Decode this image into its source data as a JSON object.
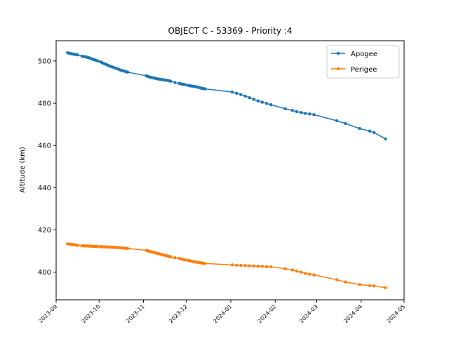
{
  "chart_data": {
    "type": "line",
    "title": "OBJECT C - 53369 - Priority :4",
    "xlabel": "",
    "ylabel": "Altitude (km)",
    "xlim": [
      "2023-09-01",
      "2024-05-01"
    ],
    "ylim": [
      386.9,
      509.6
    ],
    "xticks": [
      "2023-09",
      "2023-10",
      "2023-11",
      "2023-12",
      "2024-01",
      "2024-02",
      "2024-03",
      "2024-04",
      "2024-05"
    ],
    "yticks": [
      400,
      420,
      440,
      460,
      480,
      500
    ],
    "grid": false,
    "legend_position": "top-right",
    "series": [
      {
        "name": "Apogee",
        "color": "#1f77b4",
        "marker": "circle",
        "points": [
          [
            "2023-09-09",
            503.9
          ],
          [
            "2023-09-10",
            503.7
          ],
          [
            "2023-09-11",
            503.5
          ],
          [
            "2023-09-12",
            503.4
          ],
          [
            "2023-09-13",
            503.3
          ],
          [
            "2023-09-14",
            503.1
          ],
          [
            "2023-09-15",
            503.0
          ],
          [
            "2023-09-16",
            502.9
          ],
          [
            "2023-09-19",
            502.3
          ],
          [
            "2023-09-20",
            502.1
          ],
          [
            "2023-09-21",
            502.0
          ],
          [
            "2023-09-22",
            501.9
          ],
          [
            "2023-09-23",
            501.7
          ],
          [
            "2023-09-24",
            501.5
          ],
          [
            "2023-09-25",
            501.2
          ],
          [
            "2023-09-26",
            501.0
          ],
          [
            "2023-09-27",
            500.7
          ],
          [
            "2023-09-28",
            500.5
          ],
          [
            "2023-09-29",
            500.3
          ],
          [
            "2023-09-30",
            500.0
          ],
          [
            "2023-10-02",
            499.6
          ],
          [
            "2023-10-03",
            499.2
          ],
          [
            "2023-10-04",
            498.9
          ],
          [
            "2023-10-05",
            498.6
          ],
          [
            "2023-10-06",
            498.4
          ],
          [
            "2023-10-07",
            498.0
          ],
          [
            "2023-10-08",
            497.7
          ],
          [
            "2023-10-09",
            497.5
          ],
          [
            "2023-10-10",
            497.2
          ],
          [
            "2023-10-11",
            497.0
          ],
          [
            "2023-10-12",
            496.7
          ],
          [
            "2023-10-13",
            496.5
          ],
          [
            "2023-10-14",
            496.3
          ],
          [
            "2023-10-15",
            496.0
          ],
          [
            "2023-10-16",
            495.7
          ],
          [
            "2023-10-17",
            495.5
          ],
          [
            "2023-10-18",
            495.3
          ],
          [
            "2023-10-19",
            495.1
          ],
          [
            "2023-10-20",
            494.9
          ],
          [
            "2023-10-21",
            494.7
          ],
          [
            "2023-11-03",
            493.0
          ],
          [
            "2023-11-04",
            492.7
          ],
          [
            "2023-11-05",
            492.5
          ],
          [
            "2023-11-06",
            492.3
          ],
          [
            "2023-11-07",
            492.1
          ],
          [
            "2023-11-08",
            492.0
          ],
          [
            "2023-11-09",
            491.8
          ],
          [
            "2023-11-10",
            491.7
          ],
          [
            "2023-11-11",
            491.5
          ],
          [
            "2023-11-12",
            491.4
          ],
          [
            "2023-11-13",
            491.3
          ],
          [
            "2023-11-14",
            491.2
          ],
          [
            "2023-11-15",
            491.1
          ],
          [
            "2023-11-16",
            491.0
          ],
          [
            "2023-11-17",
            490.9
          ],
          [
            "2023-11-18",
            490.8
          ],
          [
            "2023-11-19",
            490.6
          ],
          [
            "2023-11-20",
            490.4
          ],
          [
            "2023-11-23",
            489.8
          ],
          [
            "2023-11-26",
            489.4
          ],
          [
            "2023-11-27",
            489.2
          ],
          [
            "2023-11-28",
            489.0
          ],
          [
            "2023-11-29",
            488.9
          ],
          [
            "2023-11-30",
            488.8
          ],
          [
            "2023-12-02",
            488.5
          ],
          [
            "2023-12-03",
            488.3
          ],
          [
            "2023-12-04",
            488.2
          ],
          [
            "2023-12-05",
            488.1
          ],
          [
            "2023-12-06",
            488.0
          ],
          [
            "2023-12-07",
            487.9
          ],
          [
            "2023-12-08",
            487.8
          ],
          [
            "2023-12-09",
            487.6
          ],
          [
            "2023-12-10",
            487.4
          ],
          [
            "2023-12-11",
            487.2
          ],
          [
            "2023-12-12",
            487.0
          ],
          [
            "2023-12-13",
            486.9
          ],
          [
            "2023-12-14",
            486.8
          ],
          [
            "2024-01-02",
            485.3
          ],
          [
            "2024-01-05",
            484.7
          ],
          [
            "2024-01-08",
            484.1
          ],
          [
            "2024-01-11",
            483.4
          ],
          [
            "2024-01-14",
            482.6
          ],
          [
            "2024-01-17",
            481.8
          ],
          [
            "2024-01-20",
            481.1
          ],
          [
            "2024-01-23",
            480.5
          ],
          [
            "2024-01-26",
            479.9
          ],
          [
            "2024-01-29",
            479.3
          ],
          [
            "2024-02-08",
            477.4
          ],
          [
            "2024-02-13",
            476.6
          ],
          [
            "2024-02-16",
            476.0
          ],
          [
            "2024-02-19",
            475.6
          ],
          [
            "2024-02-22",
            475.2
          ],
          [
            "2024-02-25",
            474.9
          ],
          [
            "2024-02-28",
            474.6
          ],
          [
            "2024-03-15",
            471.7
          ],
          [
            "2024-03-21",
            470.4
          ],
          [
            "2024-03-31",
            468.0
          ],
          [
            "2024-04-07",
            466.8
          ],
          [
            "2024-04-10",
            466.1
          ],
          [
            "2024-04-18",
            463.1
          ]
        ]
      },
      {
        "name": "Perigee",
        "color": "#ff7f0e",
        "marker": "circle",
        "points": [
          [
            "2023-09-09",
            413.4
          ],
          [
            "2023-09-10",
            413.3
          ],
          [
            "2023-09-11",
            413.2
          ],
          [
            "2023-09-12",
            413.1
          ],
          [
            "2023-09-13",
            413.0
          ],
          [
            "2023-09-14",
            412.9
          ],
          [
            "2023-09-15",
            412.8
          ],
          [
            "2023-09-16",
            412.7
          ],
          [
            "2023-09-19",
            412.5
          ],
          [
            "2023-09-20",
            412.5
          ],
          [
            "2023-09-21",
            412.4
          ],
          [
            "2023-09-22",
            412.4
          ],
          [
            "2023-09-23",
            412.4
          ],
          [
            "2023-09-24",
            412.3
          ],
          [
            "2023-09-25",
            412.3
          ],
          [
            "2023-09-26",
            412.2
          ],
          [
            "2023-09-27",
            412.2
          ],
          [
            "2023-09-28",
            412.2
          ],
          [
            "2023-09-29",
            412.1
          ],
          [
            "2023-09-30",
            412.1
          ],
          [
            "2023-10-02",
            412.1
          ],
          [
            "2023-10-03",
            412.0
          ],
          [
            "2023-10-04",
            412.0
          ],
          [
            "2023-10-05",
            412.0
          ],
          [
            "2023-10-06",
            411.9
          ],
          [
            "2023-10-07",
            411.9
          ],
          [
            "2023-10-08",
            411.9
          ],
          [
            "2023-10-09",
            411.8
          ],
          [
            "2023-10-10",
            411.8
          ],
          [
            "2023-10-11",
            411.8
          ],
          [
            "2023-10-12",
            411.7
          ],
          [
            "2023-10-13",
            411.7
          ],
          [
            "2023-10-14",
            411.6
          ],
          [
            "2023-10-15",
            411.6
          ],
          [
            "2023-10-16",
            411.5
          ],
          [
            "2023-10-17",
            411.5
          ],
          [
            "2023-10-18",
            411.4
          ],
          [
            "2023-10-19",
            411.4
          ],
          [
            "2023-10-20",
            411.3
          ],
          [
            "2023-10-21",
            411.2
          ],
          [
            "2023-11-03",
            410.3
          ],
          [
            "2023-11-04",
            410.1
          ],
          [
            "2023-11-05",
            409.9
          ],
          [
            "2023-11-06",
            409.7
          ],
          [
            "2023-11-07",
            409.5
          ],
          [
            "2023-11-08",
            409.4
          ],
          [
            "2023-11-09",
            409.2
          ],
          [
            "2023-11-10",
            409.0
          ],
          [
            "2023-11-11",
            408.8
          ],
          [
            "2023-11-12",
            408.7
          ],
          [
            "2023-11-13",
            408.5
          ],
          [
            "2023-11-14",
            408.3
          ],
          [
            "2023-11-15",
            408.1
          ],
          [
            "2023-11-16",
            408.0
          ],
          [
            "2023-11-17",
            407.8
          ],
          [
            "2023-11-18",
            407.6
          ],
          [
            "2023-11-19",
            407.4
          ],
          [
            "2023-11-20",
            407.2
          ],
          [
            "2023-11-23",
            406.8
          ],
          [
            "2023-11-26",
            406.5
          ],
          [
            "2023-11-27",
            406.3
          ],
          [
            "2023-11-28",
            406.1
          ],
          [
            "2023-11-29",
            406.0
          ],
          [
            "2023-11-30",
            405.8
          ],
          [
            "2023-12-02",
            405.6
          ],
          [
            "2023-12-03",
            405.4
          ],
          [
            "2023-12-04",
            405.3
          ],
          [
            "2023-12-05",
            405.1
          ],
          [
            "2023-12-06",
            405.0
          ],
          [
            "2023-12-07",
            404.8
          ],
          [
            "2023-12-08",
            404.7
          ],
          [
            "2023-12-09",
            404.6
          ],
          [
            "2023-12-10",
            404.5
          ],
          [
            "2023-12-11",
            404.4
          ],
          [
            "2023-12-12",
            404.3
          ],
          [
            "2023-12-13",
            404.2
          ],
          [
            "2023-12-14",
            404.1
          ],
          [
            "2024-01-02",
            403.4
          ],
          [
            "2024-01-05",
            403.3
          ],
          [
            "2024-01-08",
            403.2
          ],
          [
            "2024-01-11",
            403.1
          ],
          [
            "2024-01-14",
            403.0
          ],
          [
            "2024-01-17",
            402.9
          ],
          [
            "2024-01-20",
            402.8
          ],
          [
            "2024-01-23",
            402.7
          ],
          [
            "2024-01-26",
            402.6
          ],
          [
            "2024-01-29",
            402.5
          ],
          [
            "2024-02-08",
            401.6
          ],
          [
            "2024-02-13",
            401.0
          ],
          [
            "2024-02-16",
            400.5
          ],
          [
            "2024-02-19",
            400.0
          ],
          [
            "2024-02-22",
            399.4
          ],
          [
            "2024-02-25",
            399.0
          ],
          [
            "2024-02-28",
            398.7
          ],
          [
            "2024-03-15",
            396.4
          ],
          [
            "2024-03-21",
            395.3
          ],
          [
            "2024-03-31",
            394.1
          ],
          [
            "2024-04-07",
            393.6
          ],
          [
            "2024-04-10",
            393.5
          ],
          [
            "2024-04-18",
            392.6
          ]
        ]
      }
    ]
  }
}
